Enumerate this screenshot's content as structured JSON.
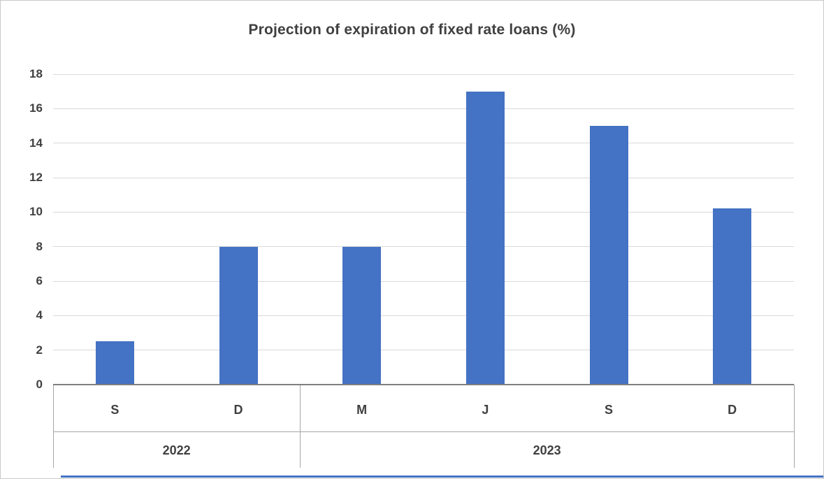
{
  "colors": {
    "bar": "#4472C4",
    "gridline": "#D9D9D9",
    "axis_line": "#7F7F7F",
    "separator": "#A6A6A6",
    "label": "#404040",
    "title": "#404040",
    "bottom_accent": "#4472C4",
    "background": "#FFFFFF"
  },
  "chart_data": {
    "type": "bar",
    "title": "Projection of expiration of fixed rate loans (%)",
    "categories": [
      "S",
      "D",
      "M",
      "J",
      "S",
      "D"
    ],
    "values": [
      2.5,
      8,
      8,
      17,
      15,
      10.2
    ],
    "groups": [
      {
        "label": "2022",
        "span": 2
      },
      {
        "label": "2023",
        "span": 4
      }
    ],
    "xlabel": "",
    "ylabel": "",
    "ylim": [
      0,
      18
    ],
    "ytick_step": 2,
    "yticks": [
      0,
      2,
      4,
      6,
      8,
      10,
      12,
      14,
      16,
      18
    ],
    "grid": true,
    "legend": false,
    "bar_color": "#4472C4"
  }
}
